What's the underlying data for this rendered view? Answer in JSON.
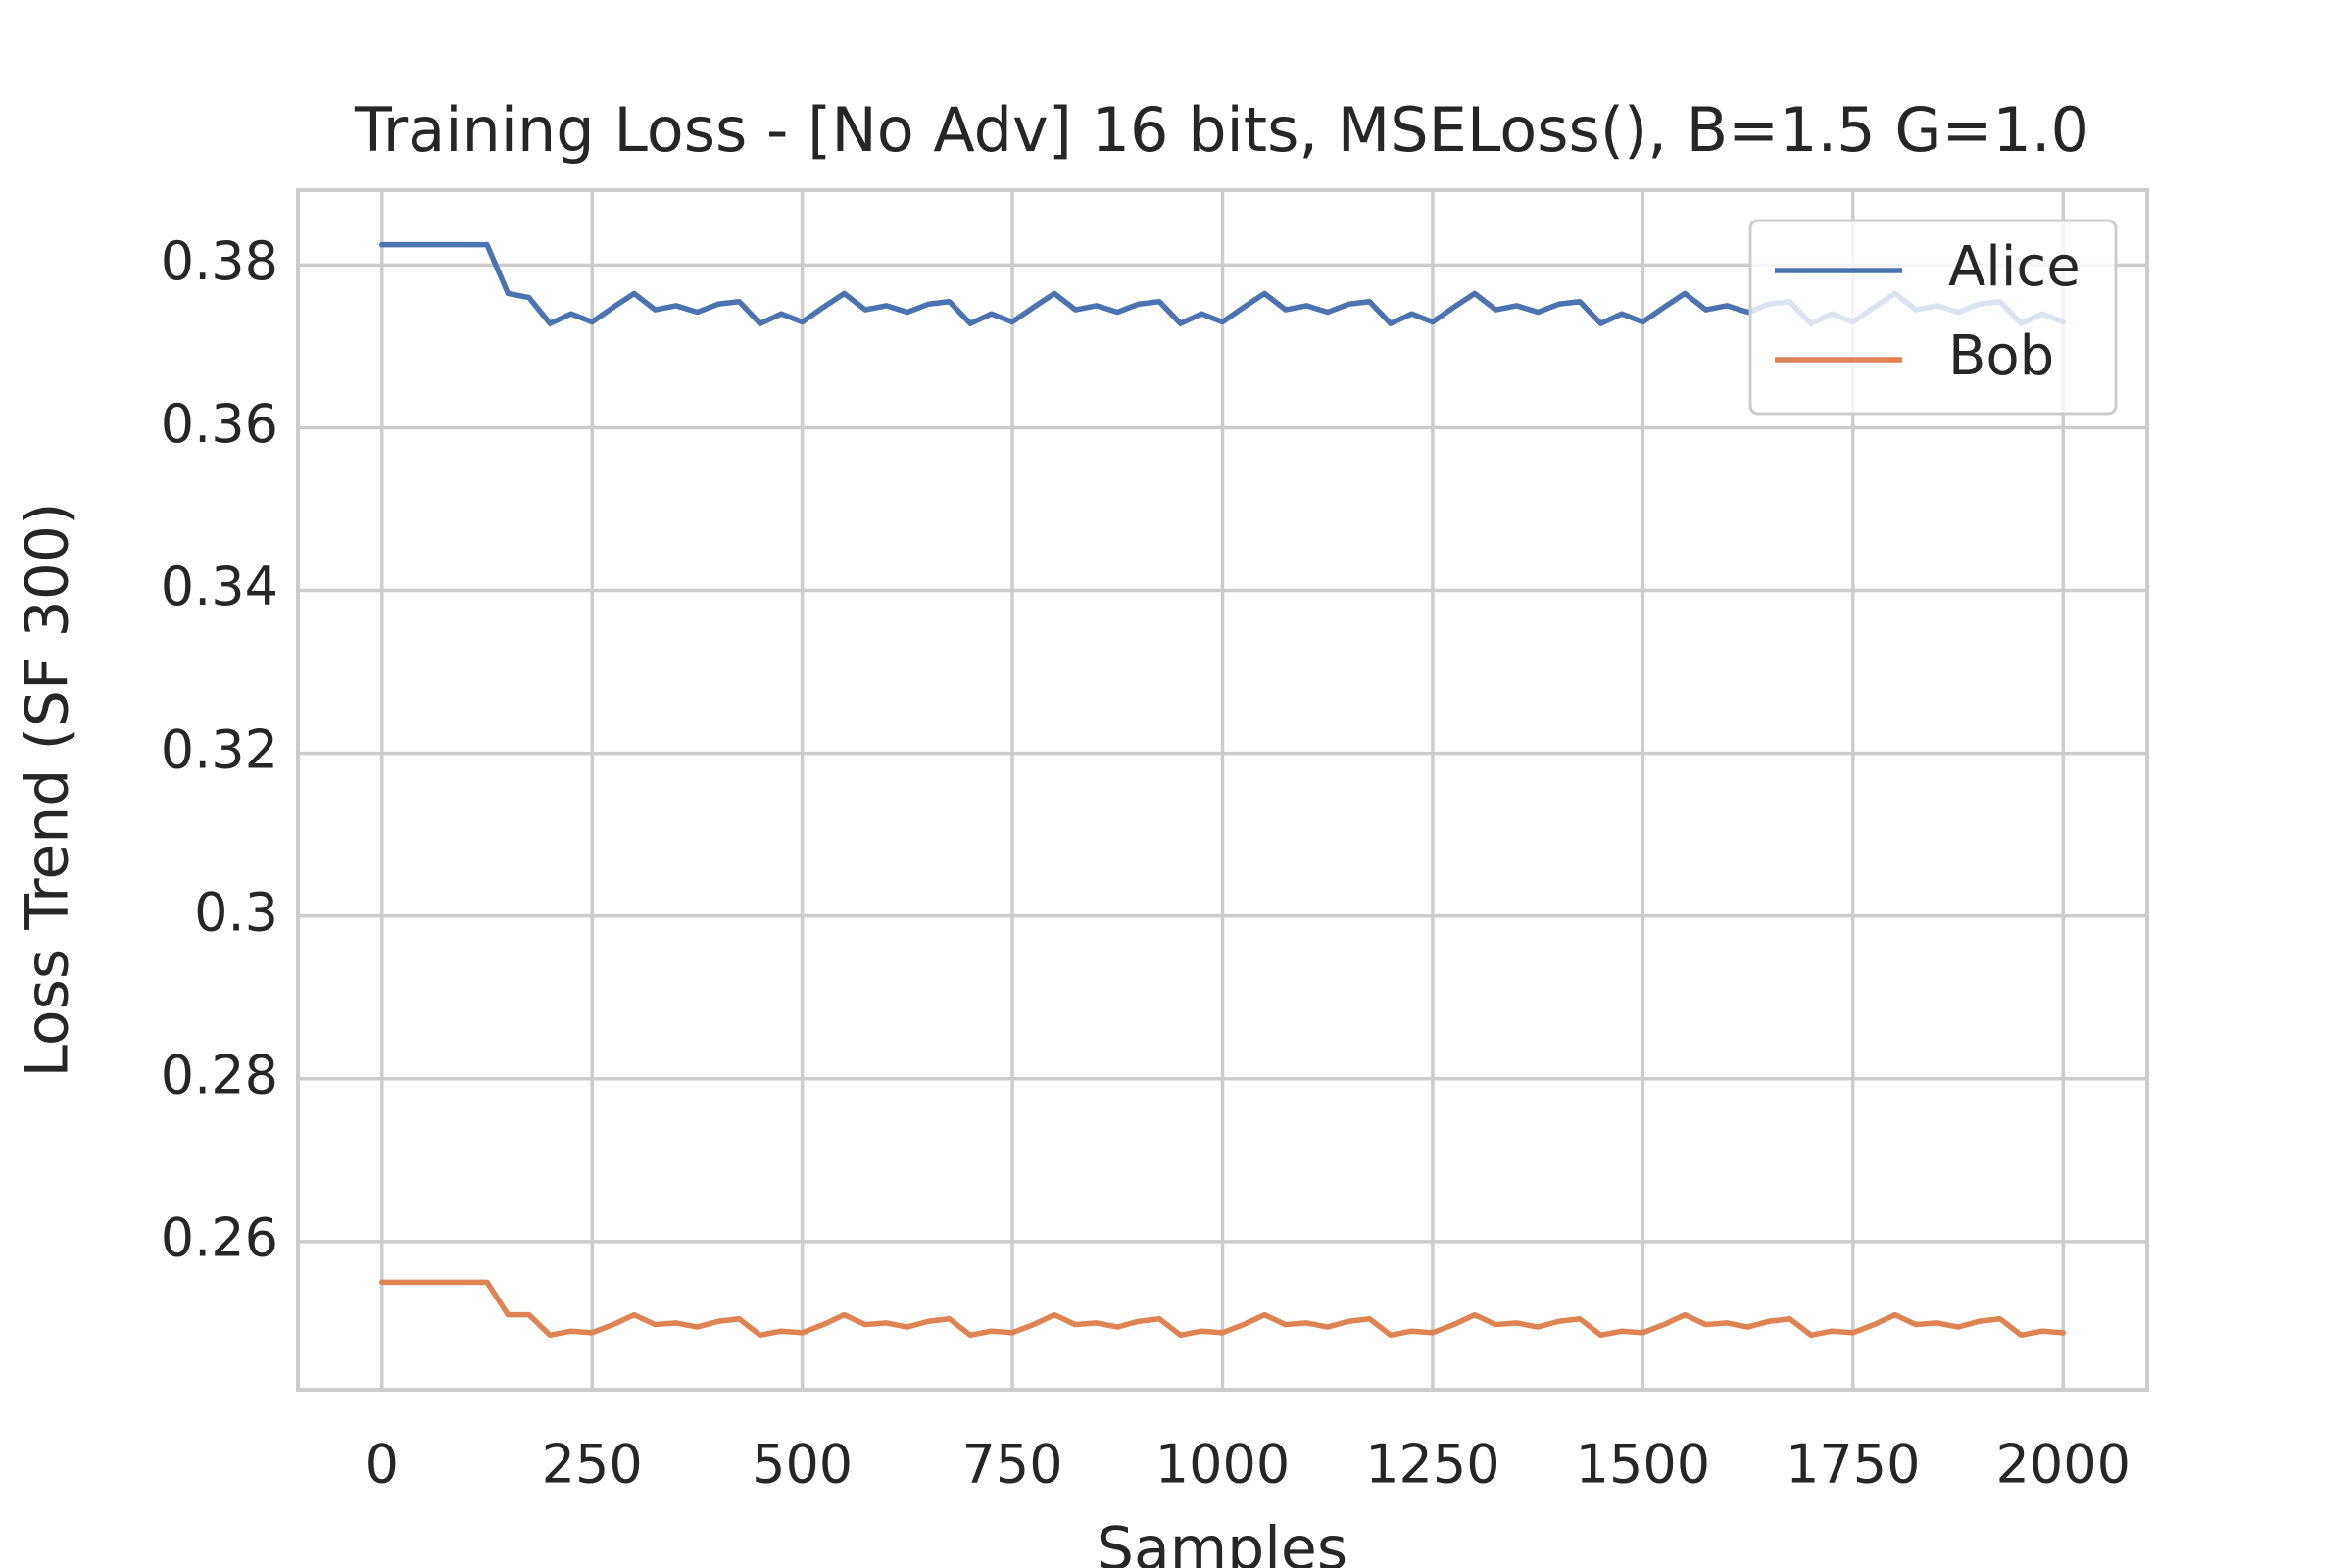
{
  "chart_data": {
    "type": "line",
    "title": "Training Loss - [No Adv] 16 bits, MSELoss(), B=1.5 G=1.0",
    "x_label": "Samples",
    "y_label": "Loss Trend (SF 300)",
    "x": [
      0,
      25,
      50,
      75,
      100,
      125,
      150,
      175,
      200,
      225,
      250,
      275,
      300,
      325,
      350,
      375,
      400,
      425,
      450,
      475,
      500,
      525,
      550,
      575,
      600,
      625,
      650,
      675,
      700,
      725,
      750,
      775,
      800,
      825,
      850,
      875,
      900,
      925,
      950,
      975,
      1000,
      1025,
      1050,
      1075,
      1100,
      1125,
      1150,
      1175,
      1200,
      1225,
      1250,
      1275,
      1300,
      1325,
      1350,
      1375,
      1400,
      1425,
      1450,
      1475,
      1500,
      1525,
      1550,
      1575,
      1600,
      1625,
      1650,
      1675,
      1700,
      1725,
      1750,
      1775,
      1800,
      1825,
      1850,
      1875,
      1900,
      1925,
      1950,
      1975,
      2000
    ],
    "series": [
      {
        "name": "Alice",
        "color": "#4c72b0",
        "values": [
          0.3825,
          0.3825,
          0.3825,
          0.3825,
          0.3825,
          0.3825,
          0.3765,
          0.376,
          0.3728,
          0.374,
          0.373,
          0.3748,
          0.3765,
          0.3745,
          0.375,
          0.3742,
          0.3752,
          0.3755,
          0.3728,
          0.374,
          0.373,
          0.3748,
          0.3765,
          0.3745,
          0.375,
          0.3742,
          0.3752,
          0.3755,
          0.3728,
          0.374,
          0.373,
          0.3748,
          0.3765,
          0.3745,
          0.375,
          0.3742,
          0.3752,
          0.3755,
          0.3728,
          0.374,
          0.373,
          0.3748,
          0.3765,
          0.3745,
          0.375,
          0.3742,
          0.3752,
          0.3755,
          0.3728,
          0.374,
          0.373,
          0.3748,
          0.3765,
          0.3745,
          0.375,
          0.3742,
          0.3752,
          0.3755,
          0.3728,
          0.374,
          0.373,
          0.3748,
          0.3765,
          0.3745,
          0.375,
          0.3742,
          0.3752,
          0.3755,
          0.3728,
          0.374,
          0.373,
          0.3748,
          0.3765,
          0.3745,
          0.375,
          0.3742,
          0.3752,
          0.3755,
          0.3728,
          0.374,
          0.373
        ]
      },
      {
        "name": "Bob",
        "color": "#dd8452",
        "values": [
          0.255,
          0.255,
          0.255,
          0.255,
          0.255,
          0.255,
          0.251,
          0.251,
          0.2485,
          0.249,
          0.2488,
          0.2498,
          0.251,
          0.2498,
          0.25,
          0.2495,
          0.2502,
          0.2505,
          0.2485,
          0.249,
          0.2488,
          0.2498,
          0.251,
          0.2498,
          0.25,
          0.2495,
          0.2502,
          0.2505,
          0.2485,
          0.249,
          0.2488,
          0.2498,
          0.251,
          0.2498,
          0.25,
          0.2495,
          0.2502,
          0.2505,
          0.2485,
          0.249,
          0.2488,
          0.2498,
          0.251,
          0.2498,
          0.25,
          0.2495,
          0.2502,
          0.2505,
          0.2485,
          0.249,
          0.2488,
          0.2498,
          0.251,
          0.2498,
          0.25,
          0.2495,
          0.2502,
          0.2505,
          0.2485,
          0.249,
          0.2488,
          0.2498,
          0.251,
          0.2498,
          0.25,
          0.2495,
          0.2502,
          0.2505,
          0.2485,
          0.249,
          0.2488,
          0.2498,
          0.251,
          0.2498,
          0.25,
          0.2495,
          0.2502,
          0.2505,
          0.2485,
          0.249,
          0.2488
        ]
      }
    ],
    "xlim": [
      -100,
      2100
    ],
    "xticks": [
      0,
      250,
      500,
      750,
      1000,
      1250,
      1500,
      1750,
      2000
    ],
    "ylim": [
      0.2418,
      0.3892
    ],
    "yticks": [
      0.26,
      0.28,
      0.3,
      0.32,
      0.34,
      0.36,
      0.38
    ],
    "grid": true,
    "legend": "upper right"
  }
}
